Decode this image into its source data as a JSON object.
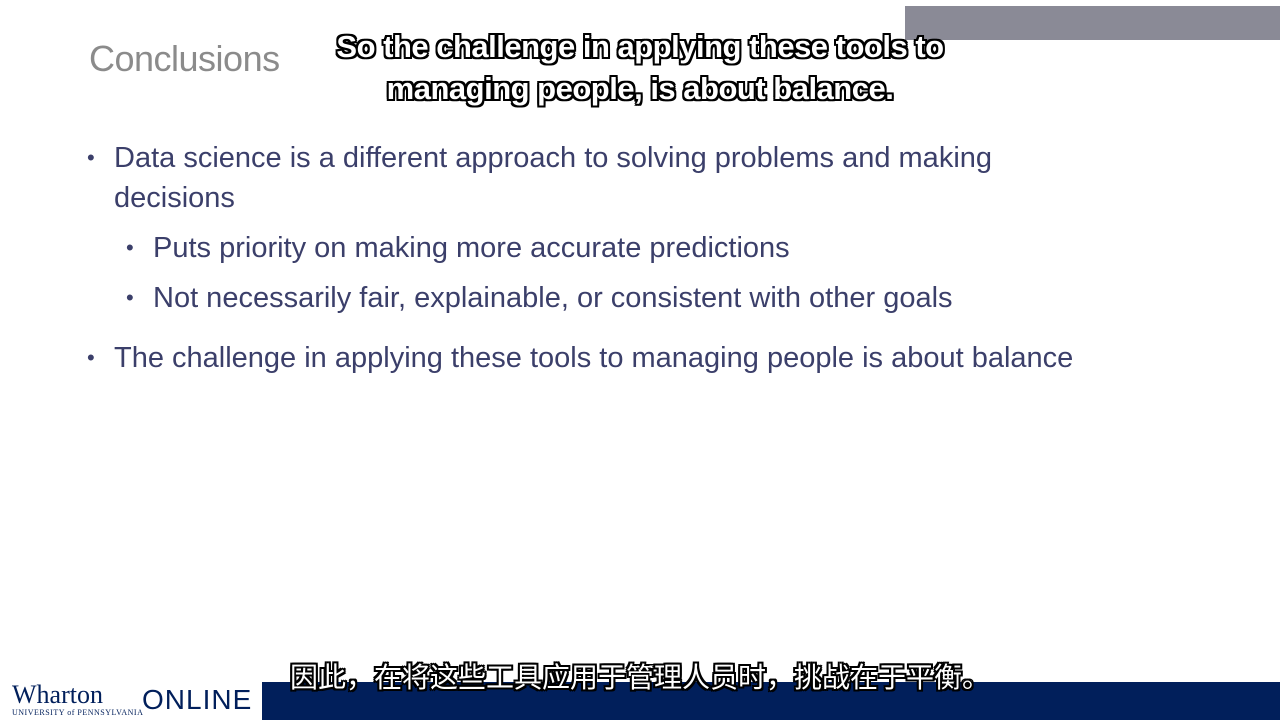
{
  "slide": {
    "title": "Conclusions",
    "bullets": [
      {
        "text": "Data science is a different approach to solving problems and making decisions",
        "level": 1
      },
      {
        "text": "Puts priority on making more accurate predictions",
        "level": 2
      },
      {
        "text": "Not necessarily fair, explainable, or consistent with other goals",
        "level": 2
      },
      {
        "text": "The challenge in applying these tools to managing people is about balance",
        "level": 1
      }
    ],
    "bullet_glyph": "•"
  },
  "captions": {
    "english": "So the challenge in applying these tools to managing people, is about balance.",
    "chinese": "因此，在将这些工具应用于管理人员时，挑战在于平衡。"
  },
  "branding": {
    "logo_main": "Wharton",
    "logo_sub": "UNIVERSITY of PENNSYLVANIA",
    "logo_online": "ONLINE",
    "footer_color": "#011f5b",
    "bullet_color": "#3b3f6a",
    "title_color": "#8b8b8b"
  }
}
